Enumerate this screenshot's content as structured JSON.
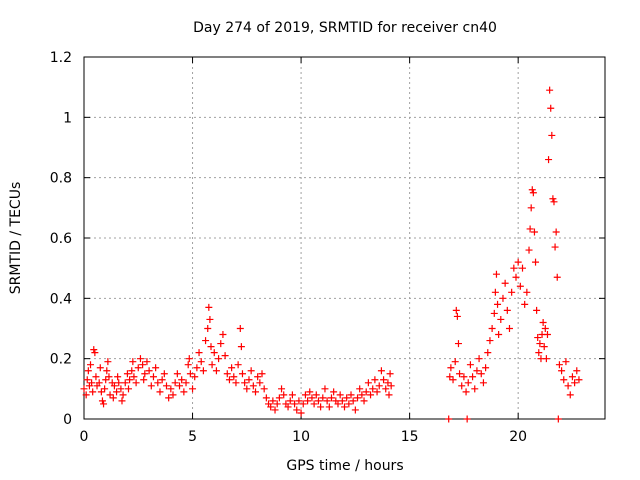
{
  "chart_data": {
    "type": "scatter",
    "title": "Day 274 of 2019, SRMTID for receiver cn40",
    "xlabel": "GPS time / hours",
    "ylabel": "SRMTID / TECUs",
    "xlim": [
      0,
      24
    ],
    "ylim": [
      0,
      1.2
    ],
    "xticks": [
      0,
      5,
      10,
      15,
      20
    ],
    "xtick_labels": [
      "0",
      "5",
      "10",
      "15",
      "20"
    ],
    "yticks": [
      0,
      0.2,
      0.4,
      0.6,
      0.8,
      1.0,
      1.2
    ],
    "ytick_labels": [
      "0",
      "0.2",
      "0.4",
      "0.6",
      "0.8",
      "1",
      "1.2"
    ],
    "grid": true,
    "marker": "+",
    "color": "#ff0000",
    "series": [
      {
        "name": "SRMTID",
        "points": [
          [
            0.0,
            0.1
          ],
          [
            0.1,
            0.08
          ],
          [
            0.15,
            0.13
          ],
          [
            0.2,
            0.16
          ],
          [
            0.25,
            0.11
          ],
          [
            0.3,
            0.18
          ],
          [
            0.35,
            0.12
          ],
          [
            0.4,
            0.09
          ],
          [
            0.45,
            0.23
          ],
          [
            0.5,
            0.22
          ],
          [
            0.55,
            0.14
          ],
          [
            0.6,
            0.11
          ],
          [
            0.7,
            0.12
          ],
          [
            0.75,
            0.17
          ],
          [
            0.8,
            0.09
          ],
          [
            0.85,
            0.06
          ],
          [
            0.9,
            0.05
          ],
          [
            0.95,
            0.1
          ],
          [
            1.0,
            0.13
          ],
          [
            1.05,
            0.16
          ],
          [
            1.1,
            0.19
          ],
          [
            1.15,
            0.14
          ],
          [
            1.2,
            0.08
          ],
          [
            1.3,
            0.12
          ],
          [
            1.35,
            0.07
          ],
          [
            1.4,
            0.11
          ],
          [
            1.5,
            0.09
          ],
          [
            1.55,
            0.14
          ],
          [
            1.6,
            0.12
          ],
          [
            1.7,
            0.1
          ],
          [
            1.75,
            0.06
          ],
          [
            1.8,
            0.08
          ],
          [
            1.9,
            0.12
          ],
          [
            2.0,
            0.15
          ],
          [
            2.05,
            0.1
          ],
          [
            2.1,
            0.13
          ],
          [
            2.2,
            0.16
          ],
          [
            2.25,
            0.19
          ],
          [
            2.3,
            0.14
          ],
          [
            2.4,
            0.12
          ],
          [
            2.5,
            0.17
          ],
          [
            2.6,
            0.2
          ],
          [
            2.7,
            0.18
          ],
          [
            2.75,
            0.13
          ],
          [
            2.8,
            0.15
          ],
          [
            2.9,
            0.19
          ],
          [
            3.0,
            0.16
          ],
          [
            3.1,
            0.11
          ],
          [
            3.2,
            0.14
          ],
          [
            3.3,
            0.17
          ],
          [
            3.4,
            0.12
          ],
          [
            3.5,
            0.09
          ],
          [
            3.6,
            0.13
          ],
          [
            3.7,
            0.15
          ],
          [
            3.8,
            0.11
          ],
          [
            3.9,
            0.07
          ],
          [
            4.0,
            0.1
          ],
          [
            4.1,
            0.08
          ],
          [
            4.2,
            0.12
          ],
          [
            4.3,
            0.15
          ],
          [
            4.4,
            0.11
          ],
          [
            4.5,
            0.13
          ],
          [
            4.6,
            0.09
          ],
          [
            4.7,
            0.12
          ],
          [
            4.8,
            0.18
          ],
          [
            4.85,
            0.2
          ],
          [
            4.9,
            0.15
          ],
          [
            5.0,
            0.1
          ],
          [
            5.1,
            0.14
          ],
          [
            5.2,
            0.17
          ],
          [
            5.3,
            0.22
          ],
          [
            5.4,
            0.19
          ],
          [
            5.5,
            0.16
          ],
          [
            5.6,
            0.26
          ],
          [
            5.7,
            0.3
          ],
          [
            5.75,
            0.37
          ],
          [
            5.8,
            0.33
          ],
          [
            5.85,
            0.24
          ],
          [
            5.9,
            0.18
          ],
          [
            6.0,
            0.22
          ],
          [
            6.1,
            0.16
          ],
          [
            6.2,
            0.2
          ],
          [
            6.3,
            0.25
          ],
          [
            6.4,
            0.28
          ],
          [
            6.5,
            0.21
          ],
          [
            6.6,
            0.15
          ],
          [
            6.7,
            0.13
          ],
          [
            6.8,
            0.17
          ],
          [
            6.9,
            0.14
          ],
          [
            7.0,
            0.12
          ],
          [
            7.1,
            0.18
          ],
          [
            7.2,
            0.3
          ],
          [
            7.25,
            0.24
          ],
          [
            7.3,
            0.15
          ],
          [
            7.4,
            0.12
          ],
          [
            7.5,
            0.1
          ],
          [
            7.6,
            0.13
          ],
          [
            7.7,
            0.16
          ],
          [
            7.8,
            0.11
          ],
          [
            7.9,
            0.09
          ],
          [
            8.0,
            0.14
          ],
          [
            8.1,
            0.12
          ],
          [
            8.2,
            0.15
          ],
          [
            8.3,
            0.1
          ],
          [
            8.4,
            0.07
          ],
          [
            8.5,
            0.05
          ],
          [
            8.6,
            0.04
          ],
          [
            8.7,
            0.06
          ],
          [
            8.8,
            0.03
          ],
          [
            8.9,
            0.05
          ],
          [
            9.0,
            0.07
          ],
          [
            9.1,
            0.1
          ],
          [
            9.2,
            0.08
          ],
          [
            9.3,
            0.05
          ],
          [
            9.4,
            0.04
          ],
          [
            9.5,
            0.06
          ],
          [
            9.6,
            0.08
          ],
          [
            9.7,
            0.05
          ],
          [
            9.8,
            0.03
          ],
          [
            9.9,
            0.06
          ],
          [
            10.0,
            0.02
          ],
          [
            10.1,
            0.05
          ],
          [
            10.2,
            0.08
          ],
          [
            10.3,
            0.06
          ],
          [
            10.4,
            0.09
          ],
          [
            10.5,
            0.07
          ],
          [
            10.6,
            0.05
          ],
          [
            10.7,
            0.08
          ],
          [
            10.8,
            0.06
          ],
          [
            10.9,
            0.04
          ],
          [
            11.0,
            0.07
          ],
          [
            11.1,
            0.1
          ],
          [
            11.2,
            0.06
          ],
          [
            11.3,
            0.04
          ],
          [
            11.4,
            0.07
          ],
          [
            11.5,
            0.09
          ],
          [
            11.6,
            0.06
          ],
          [
            11.7,
            0.05
          ],
          [
            11.8,
            0.08
          ],
          [
            11.9,
            0.06
          ],
          [
            12.0,
            0.04
          ],
          [
            12.1,
            0.07
          ],
          [
            12.2,
            0.05
          ],
          [
            12.3,
            0.08
          ],
          [
            12.4,
            0.06
          ],
          [
            12.5,
            0.03
          ],
          [
            12.6,
            0.07
          ],
          [
            12.7,
            0.1
          ],
          [
            12.8,
            0.08
          ],
          [
            12.9,
            0.06
          ],
          [
            13.0,
            0.09
          ],
          [
            13.1,
            0.12
          ],
          [
            13.2,
            0.08
          ],
          [
            13.3,
            0.1
          ],
          [
            13.4,
            0.13
          ],
          [
            13.5,
            0.09
          ],
          [
            13.6,
            0.11
          ],
          [
            13.7,
            0.16
          ],
          [
            13.8,
            0.13
          ],
          [
            13.9,
            0.1
          ],
          [
            14.0,
            0.12
          ],
          [
            14.05,
            0.08
          ],
          [
            14.1,
            0.15
          ],
          [
            14.15,
            0.11
          ],
          [
            16.8,
            0.0
          ],
          [
            16.85,
            0.14
          ],
          [
            16.9,
            0.17
          ],
          [
            17.0,
            0.13
          ],
          [
            17.1,
            0.19
          ],
          [
            17.15,
            0.36
          ],
          [
            17.2,
            0.34
          ],
          [
            17.25,
            0.25
          ],
          [
            17.3,
            0.15
          ],
          [
            17.4,
            0.11
          ],
          [
            17.5,
            0.14
          ],
          [
            17.6,
            0.09
          ],
          [
            17.65,
            0.0
          ],
          [
            17.7,
            0.12
          ],
          [
            17.8,
            0.18
          ],
          [
            17.9,
            0.14
          ],
          [
            18.0,
            0.1
          ],
          [
            18.1,
            0.16
          ],
          [
            18.2,
            0.2
          ],
          [
            18.3,
            0.15
          ],
          [
            18.4,
            0.12
          ],
          [
            18.5,
            0.17
          ],
          [
            18.6,
            0.22
          ],
          [
            18.7,
            0.26
          ],
          [
            18.8,
            0.3
          ],
          [
            18.9,
            0.35
          ],
          [
            18.95,
            0.42
          ],
          [
            19.0,
            0.48
          ],
          [
            19.05,
            0.38
          ],
          [
            19.1,
            0.28
          ],
          [
            19.2,
            0.33
          ],
          [
            19.3,
            0.4
          ],
          [
            19.4,
            0.45
          ],
          [
            19.5,
            0.36
          ],
          [
            19.6,
            0.3
          ],
          [
            19.7,
            0.42
          ],
          [
            19.8,
            0.5
          ],
          [
            19.9,
            0.47
          ],
          [
            20.0,
            0.52
          ],
          [
            20.1,
            0.44
          ],
          [
            20.2,
            0.5
          ],
          [
            20.3,
            0.38
          ],
          [
            20.4,
            0.42
          ],
          [
            20.5,
            0.56
          ],
          [
            20.55,
            0.63
          ],
          [
            20.6,
            0.7
          ],
          [
            20.65,
            0.76
          ],
          [
            20.7,
            0.75
          ],
          [
            20.75,
            0.62
          ],
          [
            20.8,
            0.52
          ],
          [
            20.85,
            0.36
          ],
          [
            20.9,
            0.27
          ],
          [
            20.95,
            0.22
          ],
          [
            21.0,
            0.25
          ],
          [
            21.05,
            0.2
          ],
          [
            21.1,
            0.28
          ],
          [
            21.15,
            0.32
          ],
          [
            21.2,
            0.24
          ],
          [
            21.25,
            0.3
          ],
          [
            21.3,
            0.2
          ],
          [
            21.35,
            0.28
          ],
          [
            21.4,
            0.86
          ],
          [
            21.45,
            1.09
          ],
          [
            21.5,
            1.03
          ],
          [
            21.55,
            0.94
          ],
          [
            21.6,
            0.73
          ],
          [
            21.65,
            0.72
          ],
          [
            21.7,
            0.57
          ],
          [
            21.75,
            0.62
          ],
          [
            21.8,
            0.47
          ],
          [
            21.85,
            0.0
          ],
          [
            21.9,
            0.18
          ],
          [
            22.0,
            0.16
          ],
          [
            22.1,
            0.13
          ],
          [
            22.2,
            0.19
          ],
          [
            22.3,
            0.11
          ],
          [
            22.4,
            0.08
          ],
          [
            22.5,
            0.14
          ],
          [
            22.6,
            0.12
          ],
          [
            22.7,
            0.16
          ],
          [
            22.8,
            0.13
          ]
        ]
      }
    ]
  }
}
